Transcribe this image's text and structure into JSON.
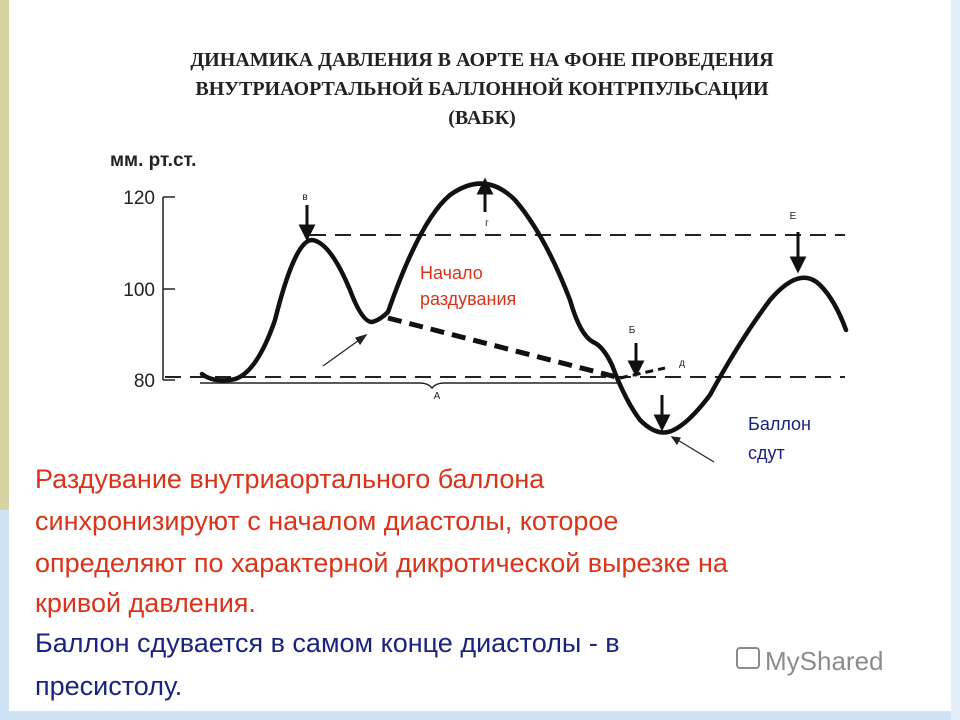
{
  "header": {
    "title": [
      "ДИНАМИКА ДАВЛЕНИЯ В АОРТЕ НА ФОНЕ ПРОВЕДЕНИЯ",
      "ВНУТРИАОРТАЛЬНОЙ БАЛЛОННОЙ КОНТРПУЛЬСАЦИИ",
      "(ВАБК)"
    ]
  },
  "diagram": {
    "axis_label": "мм. рт.ст.",
    "ticks": [
      "120",
      "100",
      "80"
    ],
    "markers": {
      "v": "в",
      "g": "г",
      "b": "Б",
      "d": "д",
      "e": "Е",
      "a": "А"
    },
    "callouts": {
      "inflation": [
        "Начало",
        "раздувания"
      ],
      "deflated": [
        "Баллон",
        "сдут"
      ]
    }
  },
  "body": {
    "red": [
      "Раздувание внутриаортального баллона",
      "синхронизируют с началом диастолы, которое",
      "определяют по характерной дикротической вырезке на",
      "кривой давления."
    ],
    "blue": [
      "Баллон сдувается в самом конце диастолы - в",
      "пресистолу."
    ]
  },
  "watermark": "MyShared"
}
